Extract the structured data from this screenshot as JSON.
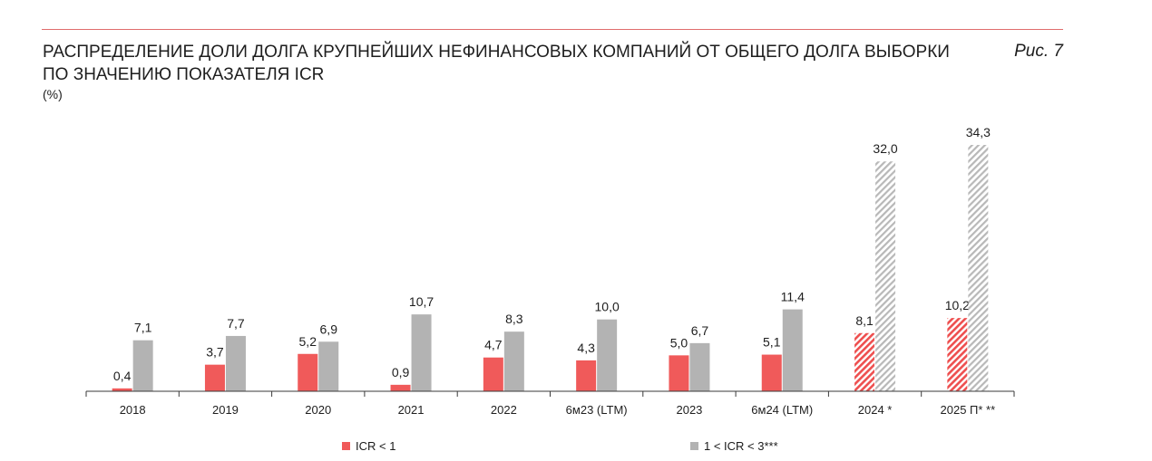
{
  "header": {
    "title_line1": "РАСПРЕДЕЛЕНИЕ ДОЛИ ДОЛГА КРУПНЕЙШИХ НЕФИНАНСОВЫХ КОМПАНИЙ ОТ ОБЩЕГО ДОЛГА ВЫБОРКИ",
    "title_line2": "ПО ЗНАЧЕНИЮ ПОКАЗАТЕЛЯ ICR",
    "unit": "(%)",
    "figure_label": "Рис. 7"
  },
  "chart_data": {
    "type": "bar",
    "categories": [
      "2018",
      "2019",
      "2020",
      "2021",
      "2022",
      "6м23 (LTM)",
      "2023",
      "6м24 (LTM)",
      "2024 *",
      "2025 П* **"
    ],
    "hatched_categories": [
      "2024 *",
      "2025 П* **"
    ],
    "series": [
      {
        "name": "ICR < 1",
        "color": "#f05a5a",
        "values": [
          0.4,
          3.7,
          5.2,
          0.9,
          4.7,
          4.3,
          5.0,
          5.1,
          8.1,
          10.2
        ],
        "labels": [
          "0,4",
          "3,7",
          "5,2",
          "0,9",
          "4,7",
          "4,3",
          "5,0",
          "5,1",
          "8,1",
          "10,2"
        ]
      },
      {
        "name": "1 < ICR < 3***",
        "color": "#b3b3b3",
        "values": [
          7.1,
          7.7,
          6.9,
          10.7,
          8.3,
          10.0,
          6.7,
          11.4,
          32.0,
          34.3
        ],
        "labels": [
          "7,1",
          "7,7",
          "6,9",
          "10,7",
          "8,3",
          "10,0",
          "6,7",
          "11,4",
          "32,0",
          "34,3"
        ]
      }
    ],
    "title": "",
    "xlabel": "",
    "ylabel": "",
    "ylim": [
      0,
      34.3
    ],
    "grid": false,
    "legend_position": "bottom"
  }
}
